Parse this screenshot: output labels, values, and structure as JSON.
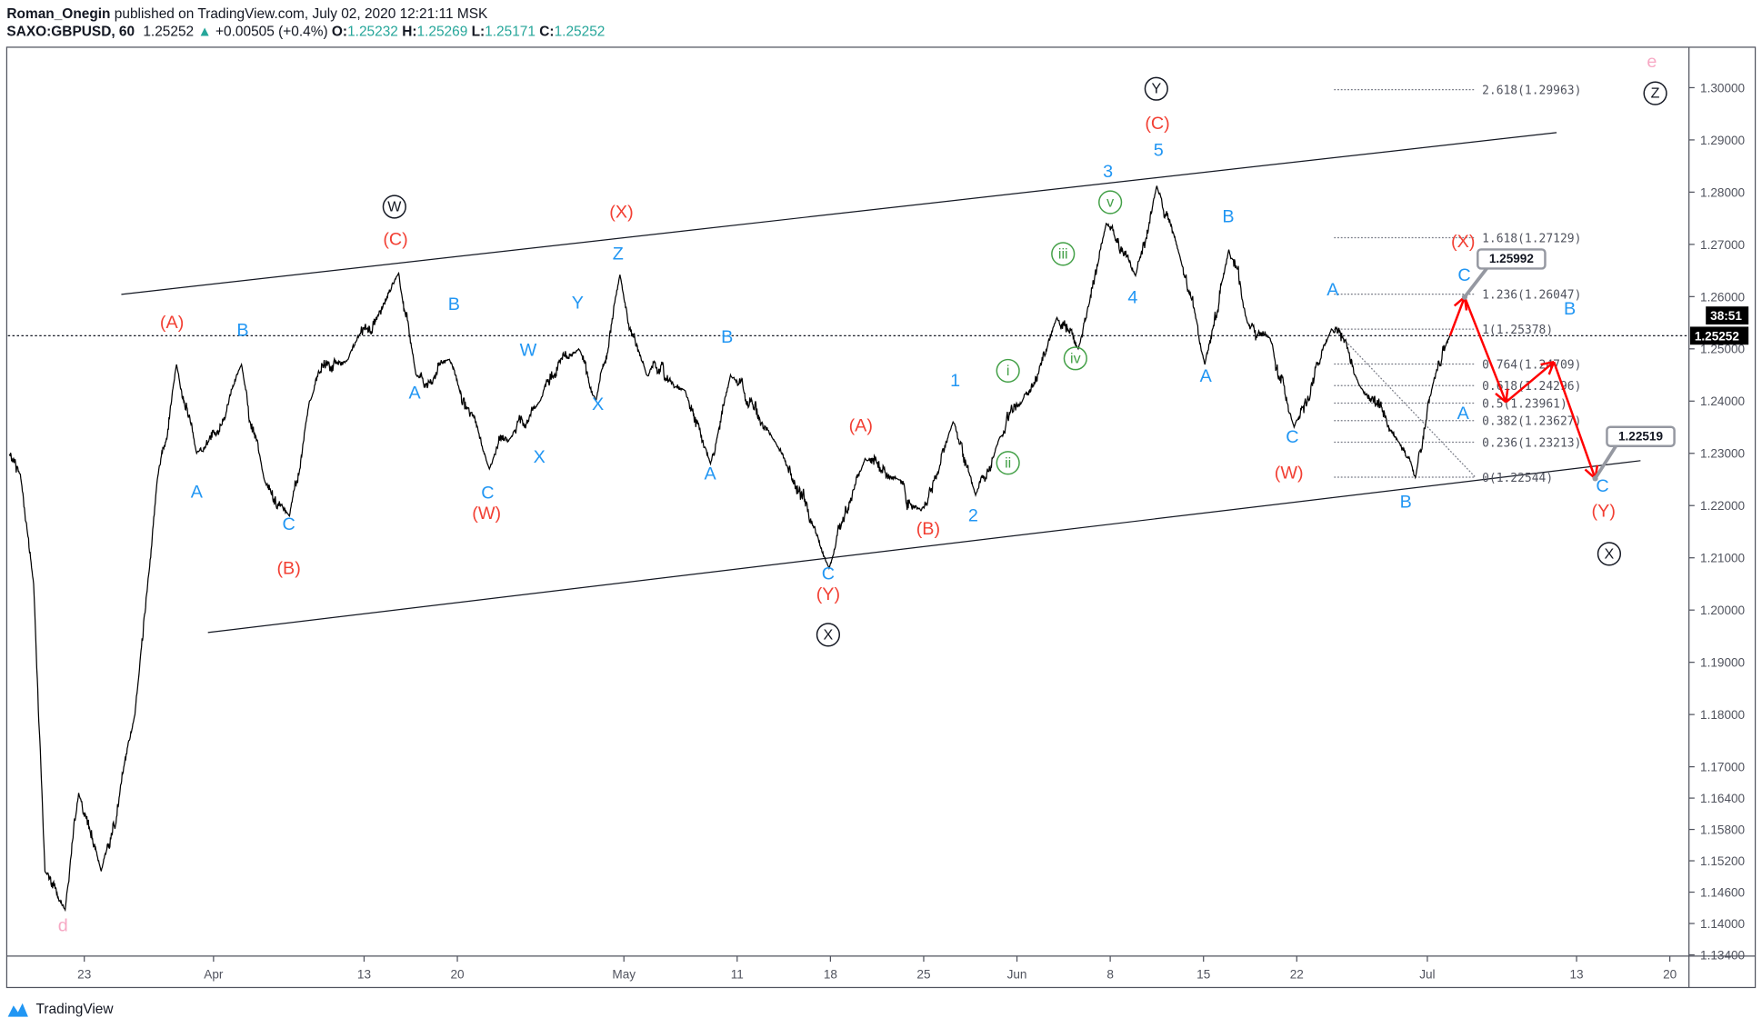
{
  "header": {
    "author": "Roman_Onegin",
    "published": "published on TradingView.com, July 02, 2020 12:21:11 MSK",
    "symbol": "SAXO:GBPUSD, 60",
    "last": "1.25252",
    "change": "+0.00505 (+0.4%)",
    "o_label": "O:",
    "o": "1.25232",
    "h_label": "H:",
    "h": "1.25269",
    "l_label": "L:",
    "l": "1.25171",
    "c_label": "C:",
    "c": "1.25252"
  },
  "colors": {
    "up": "#26a69a",
    "wave_blue": "#2196f3",
    "wave_red": "#f23f33",
    "wave_green": "#43a047",
    "wave_pink": "#f7a8c4",
    "arrow": "#ff0000"
  },
  "chart_data": {
    "type": "line",
    "title": "SAXO:GBPUSD, 60",
    "xlabel": "",
    "ylabel": "",
    "x_unit": "days since Mar 23 2020",
    "ylim": [
      1.134,
      1.309
    ],
    "price_ticks": [
      "1.30000",
      "1.29000",
      "1.28000",
      "1.27000",
      "1.26000",
      "1.25000",
      "1.24000",
      "1.23000",
      "1.22000",
      "1.21000",
      "1.20000",
      "1.19000",
      "1.18000",
      "1.17000",
      "1.16400",
      "1.15800",
      "1.15200",
      "1.14600",
      "1.14000",
      "1.13400"
    ],
    "price_tick_values": [
      1.3,
      1.29,
      1.28,
      1.27,
      1.26,
      1.25,
      1.24,
      1.23,
      1.22,
      1.21,
      1.2,
      1.19,
      1.18,
      1.17,
      1.164,
      1.158,
      1.152,
      1.146,
      1.14,
      1.134
    ],
    "time_ticks": [
      {
        "label": "23",
        "day": 0
      },
      {
        "label": "Apr",
        "day": 9.7
      },
      {
        "label": "13",
        "day": 21
      },
      {
        "label": "20",
        "day": 28
      },
      {
        "label": "May",
        "day": 40.5
      },
      {
        "label": "11",
        "day": 49
      },
      {
        "label": "18",
        "day": 56
      },
      {
        "label": "25",
        "day": 63
      },
      {
        "label": "Jun",
        "day": 70
      },
      {
        "label": "8",
        "day": 77
      },
      {
        "label": "15",
        "day": 84
      },
      {
        "label": "22",
        "day": 91
      },
      {
        "label": "Jul",
        "day": 100.8
      },
      {
        "label": "13",
        "day": 112
      },
      {
        "label": "20",
        "day": 119
      }
    ],
    "series": [
      {
        "name": "GBPUSD",
        "points": [
          [
            -5.65,
            1.2297
          ],
          [
            -4.8,
            1.226
          ],
          [
            -3.8,
            1.205
          ],
          [
            -2.95,
            1.15
          ],
          [
            -1.43,
            1.1426
          ],
          [
            -0.42,
            1.165
          ],
          [
            1.27,
            1.15
          ],
          [
            3.8,
            1.18
          ],
          [
            5.48,
            1.225
          ],
          [
            6.92,
            1.247
          ],
          [
            8.43,
            1.23
          ],
          [
            11.8,
            1.247
          ],
          [
            13.5,
            1.225
          ],
          [
            15.4,
            1.218
          ],
          [
            16.9,
            1.24
          ],
          [
            19.8,
            1.248
          ],
          [
            23.6,
            1.2645
          ],
          [
            24.9,
            1.245
          ],
          [
            27.4,
            1.248
          ],
          [
            30.4,
            1.227
          ],
          [
            32,
            1.233
          ],
          [
            34.2,
            1.24
          ],
          [
            37.1,
            1.25
          ],
          [
            38.4,
            1.24
          ],
          [
            40.2,
            1.2642
          ],
          [
            42.2,
            1.245
          ],
          [
            45.1,
            1.242
          ],
          [
            47,
            1.228
          ],
          [
            48.5,
            1.245
          ],
          [
            51.9,
            1.232
          ],
          [
            55.9,
            1.208
          ],
          [
            58.6,
            1.229
          ],
          [
            61.1,
            1.225
          ],
          [
            62.8,
            1.219
          ],
          [
            65.2,
            1.236
          ],
          [
            66.9,
            1.222
          ],
          [
            68.7,
            1.233
          ],
          [
            70.4,
            1.24
          ],
          [
            73,
            1.256
          ],
          [
            74.6,
            1.25
          ],
          [
            76.7,
            1.274
          ],
          [
            78.9,
            1.264
          ],
          [
            80.5,
            1.2812
          ],
          [
            82.2,
            1.268
          ],
          [
            84.1,
            1.247
          ],
          [
            85.9,
            1.269
          ],
          [
            87.3,
            1.255
          ],
          [
            89,
            1.252
          ],
          [
            90.8,
            1.235
          ],
          [
            93.6,
            1.2538
          ],
          [
            95.7,
            1.243
          ],
          [
            98.7,
            1.232
          ],
          [
            99.9,
            1.2254
          ],
          [
            101.2,
            1.243
          ],
          [
            102.5,
            1.2525
          ]
        ]
      }
    ],
    "current_price": "1.25252",
    "countdown": "38:51",
    "channel": {
      "upper": [
        [
          2.78,
          1.26043
        ],
        [
          110.5,
          1.2914
        ]
      ],
      "lower": [
        [
          9.28,
          1.1957
        ],
        [
          116.8,
          1.2286
        ]
      ]
    },
    "fibonacci": {
      "levels": [
        {
          "ratio": "2.618",
          "price": 1.29963,
          "label": "2.618(1.29963)"
        },
        {
          "ratio": "1.618",
          "price": 1.27129,
          "label": "1.618(1.27129)"
        },
        {
          "ratio": "1.236",
          "price": 1.26047,
          "label": "1.236(1.26047)"
        },
        {
          "ratio": "1",
          "price": 1.25378,
          "label": "1(1.25378)"
        },
        {
          "ratio": "0.764",
          "price": 1.24709,
          "label": "0.764(1.24709)"
        },
        {
          "ratio": "0.618",
          "price": 1.24296,
          "label": "0.618(1.24296)"
        },
        {
          "ratio": "0.5",
          "price": 1.23961,
          "label": "0.5(1.23961)"
        },
        {
          "ratio": "0.382",
          "price": 1.23627,
          "label": "0.382(1.23627)"
        },
        {
          "ratio": "0.236",
          "price": 1.23213,
          "label": "0.236(1.23213)"
        },
        {
          "ratio": "0",
          "price": 1.22544,
          "label": "0(1.22544)"
        }
      ]
    },
    "projection": {
      "path": [
        [
          102.5,
          1.2525
        ],
        [
          103.6,
          1.25992
        ],
        [
          106.7,
          1.2398
        ],
        [
          110.3,
          1.2475
        ],
        [
          113.4,
          1.22519
        ]
      ],
      "callouts": [
        "1.25992",
        "1.22519"
      ]
    },
    "annotations": [
      {
        "text": "A",
        "style": "blue"
      },
      {
        "text": "C",
        "style": "blue"
      },
      {
        "text": "B",
        "style": "blue"
      },
      {
        "text": "A",
        "style": "blue"
      },
      {
        "text": "B",
        "style": "blue"
      },
      {
        "text": "C",
        "style": "blue"
      },
      {
        "text": "X",
        "style": "blue"
      },
      {
        "text": "W",
        "style": "blue"
      },
      {
        "text": "Y",
        "style": "blue"
      },
      {
        "text": "X",
        "style": "blue"
      },
      {
        "text": "Z",
        "style": "blue"
      },
      {
        "text": "B",
        "style": "blue"
      },
      {
        "text": "A",
        "style": "blue"
      },
      {
        "text": "C",
        "style": "blue"
      },
      {
        "text": "1",
        "style": "blue"
      },
      {
        "text": "2",
        "style": "blue"
      },
      {
        "text": "3",
        "style": "blue"
      },
      {
        "text": "4",
        "style": "blue"
      },
      {
        "text": "5",
        "style": "blue"
      },
      {
        "text": "B",
        "style": "blue"
      },
      {
        "text": "A",
        "style": "blue"
      },
      {
        "text": "C",
        "style": "blue"
      },
      {
        "text": "A",
        "style": "blue"
      },
      {
        "text": "B",
        "style": "blue"
      },
      {
        "text": "C",
        "style": "blue"
      },
      {
        "text": "B",
        "style": "blue"
      },
      {
        "text": "A",
        "style": "blue"
      },
      {
        "text": "C",
        "style": "blue"
      },
      {
        "text": "(A)",
        "style": "red"
      },
      {
        "text": "(B)",
        "style": "red"
      },
      {
        "text": "(C)",
        "style": "red"
      },
      {
        "text": "(W)",
        "style": "red"
      },
      {
        "text": "(X)",
        "style": "red"
      },
      {
        "text": "(A)",
        "style": "red"
      },
      {
        "text": "(B)",
        "style": "red"
      },
      {
        "text": "(Y)",
        "style": "red"
      },
      {
        "text": "(C)",
        "style": "red"
      },
      {
        "text": "(W)",
        "style": "red"
      },
      {
        "text": "(X)",
        "style": "red"
      },
      {
        "text": "(Y)",
        "style": "red"
      },
      {
        "text": "d",
        "style": "pink"
      },
      {
        "text": "e",
        "style": "pink"
      },
      {
        "text": "i",
        "style": "green-circle"
      },
      {
        "text": "ii",
        "style": "green-circle"
      },
      {
        "text": "iii",
        "style": "green-circle"
      },
      {
        "text": "iv",
        "style": "green-circle"
      },
      {
        "text": "v",
        "style": "green-circle"
      },
      {
        "text": "W",
        "style": "black-circle"
      },
      {
        "text": "X",
        "style": "black-circle"
      },
      {
        "text": "Y",
        "style": "black-circle"
      },
      {
        "text": "Z",
        "style": "black-circle"
      },
      {
        "text": "X",
        "style": "black-circle"
      }
    ]
  },
  "footer": {
    "brand": "TradingView"
  }
}
